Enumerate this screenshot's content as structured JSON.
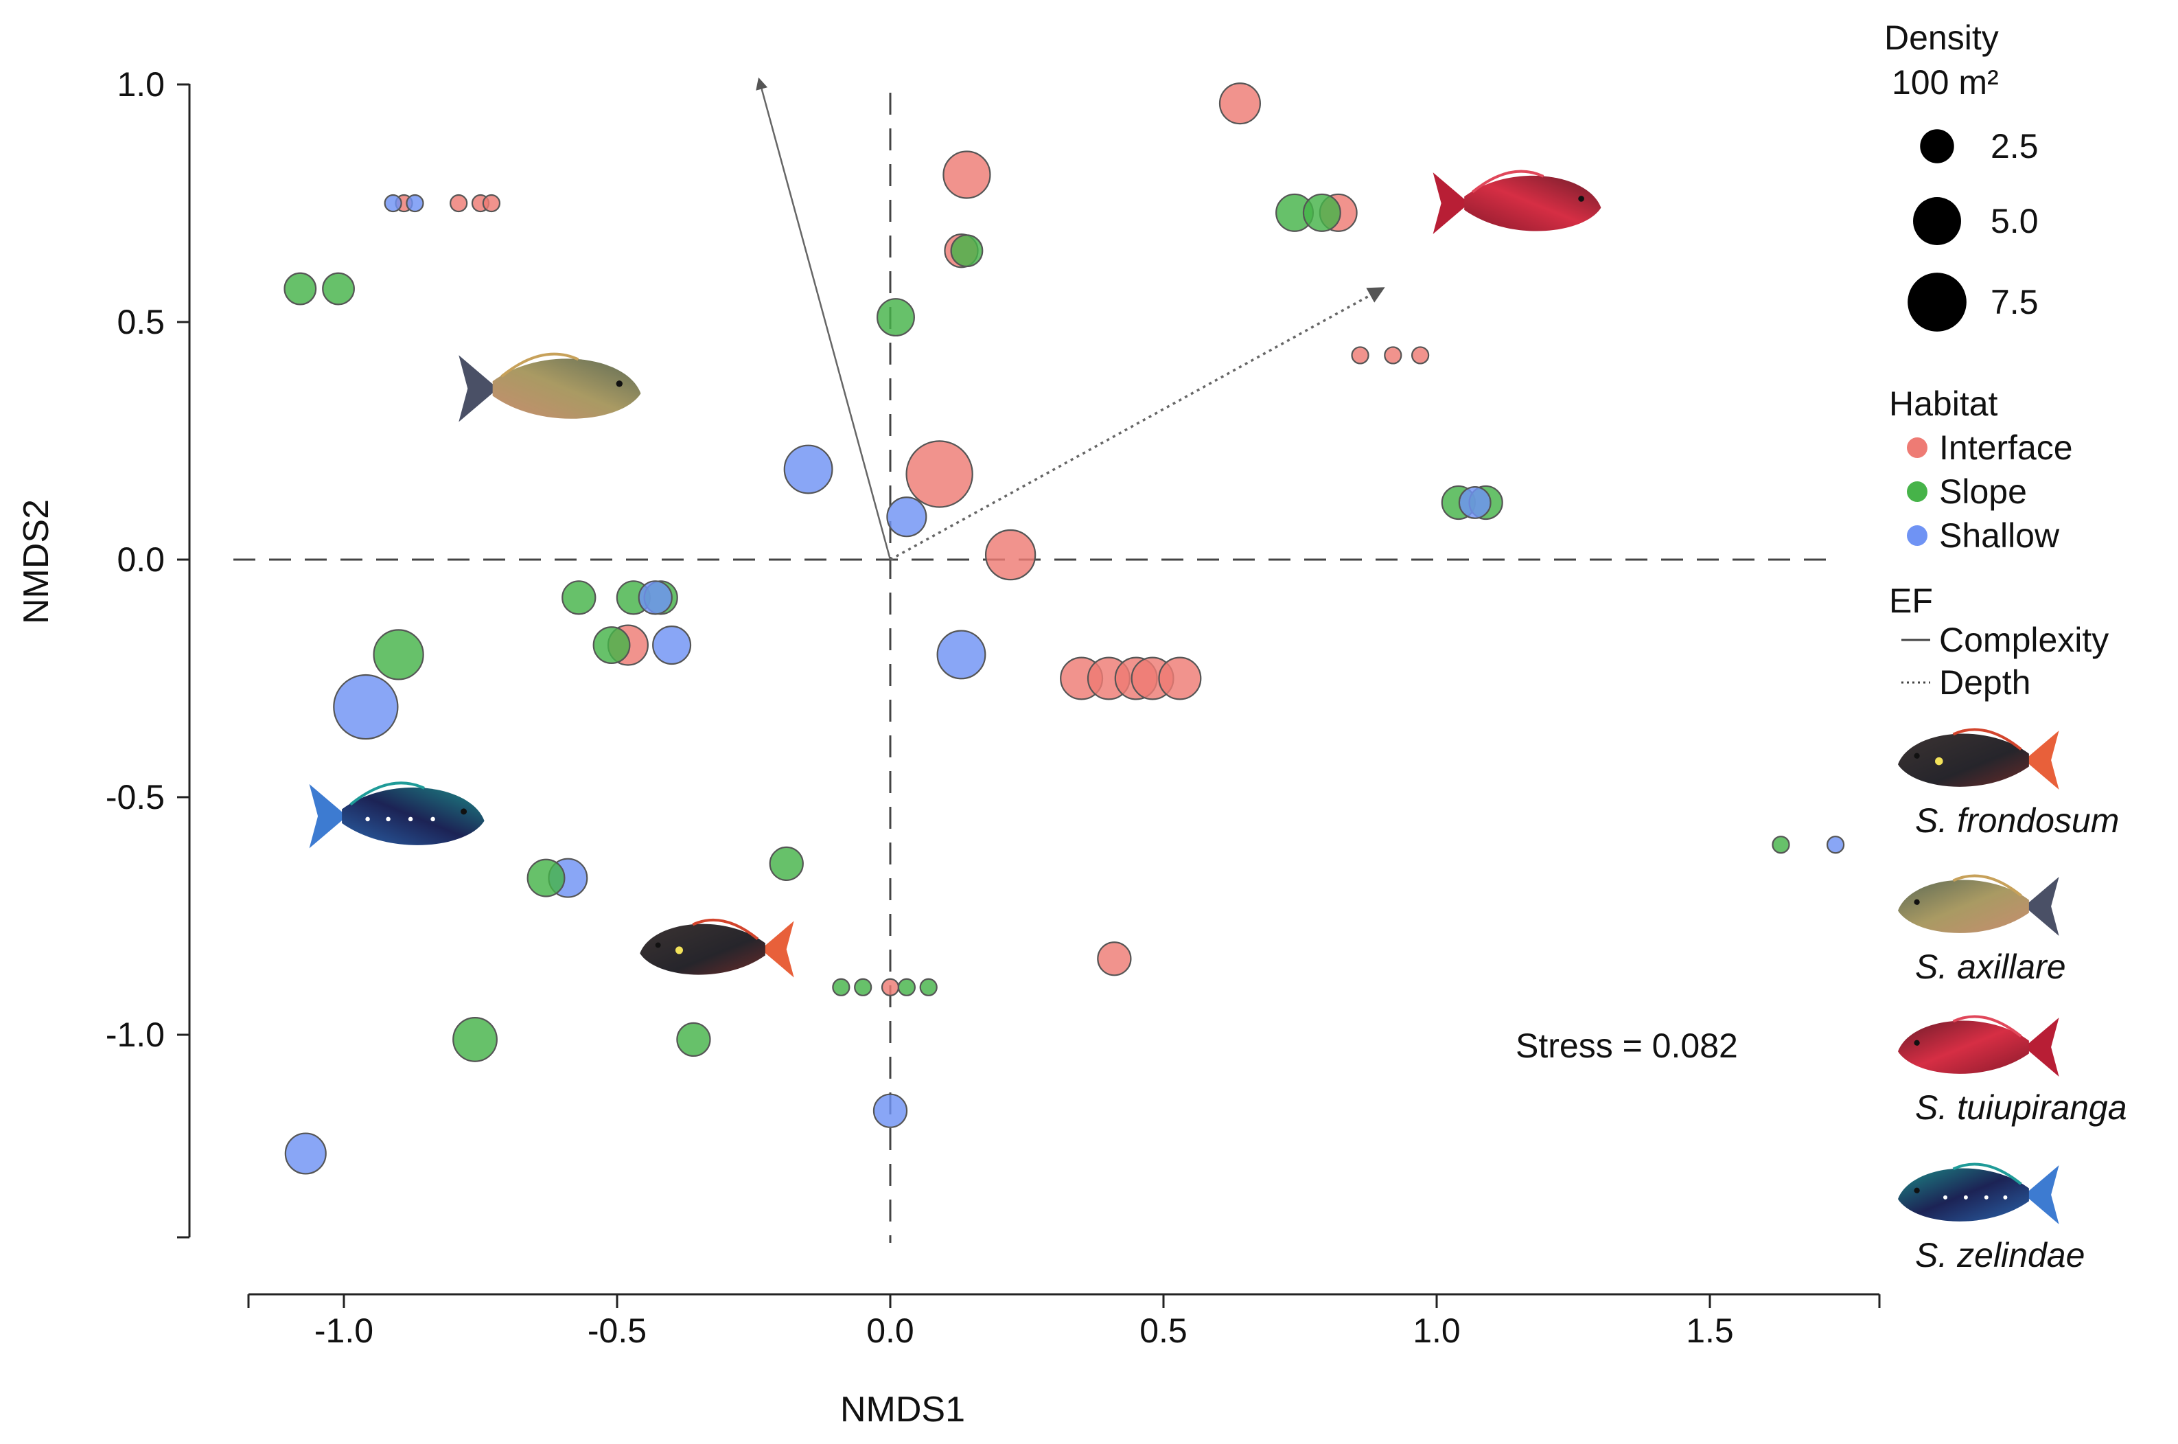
{
  "chart_data": {
    "type": "scatter",
    "title": "",
    "xlabel": "NMDS1",
    "ylabel": "NMDS2",
    "xlim": [
      -1.18,
      1.8
    ],
    "ylim": [
      -1.42,
      1.06
    ],
    "x_ticks": [
      -1.0,
      -0.5,
      0.0,
      0.5,
      1.0,
      1.5
    ],
    "x_tick_labels": [
      "-1.0",
      "-0.5",
      "0.0",
      "0.5",
      "1.0",
      "1.5"
    ],
    "y_ticks": [
      1.0,
      0.5,
      0.0,
      -0.5,
      -1.0
    ],
    "y_tick_labels": [
      "1.0",
      "0.5",
      "0.0",
      "-0.5",
      "-1.0"
    ],
    "reference_lines": {
      "x": 0,
      "y": 0,
      "style": "dashed"
    },
    "stress_label": "Stress = 0.082",
    "colors": {
      "Interface": "#ee7b74",
      "Slope": "#46b349",
      "Shallow": "#6f93f4"
    },
    "series": [
      {
        "name": "Interface",
        "points": [
          {
            "x": 0.64,
            "y": 0.96,
            "density": 3.0
          },
          {
            "x": 0.14,
            "y": 0.81,
            "density": 4.0
          },
          {
            "x": 0.13,
            "y": 0.65,
            "density": 2.0
          },
          {
            "x": 0.82,
            "y": 0.73,
            "density": 2.5
          },
          {
            "x": 0.09,
            "y": 0.18,
            "density": 8.0
          },
          {
            "x": 0.22,
            "y": 0.01,
            "density": 4.5
          },
          {
            "x": 0.35,
            "y": -0.25,
            "density": 3.2
          },
          {
            "x": 0.4,
            "y": -0.25,
            "density": 3.2
          },
          {
            "x": 0.45,
            "y": -0.25,
            "density": 3.2
          },
          {
            "x": 0.48,
            "y": -0.25,
            "density": 3.2
          },
          {
            "x": 0.53,
            "y": -0.25,
            "density": 3.2
          },
          {
            "x": -0.48,
            "y": -0.18,
            "density": 2.9
          },
          {
            "x": 0.41,
            "y": -0.84,
            "density": 2.0
          },
          {
            "x": 0.86,
            "y": 0.43,
            "density": 0.5
          },
          {
            "x": 0.92,
            "y": 0.43,
            "density": 0.5
          },
          {
            "x": 0.97,
            "y": 0.43,
            "density": 0.5
          },
          {
            "x": -0.79,
            "y": 0.75,
            "density": 0.5
          },
          {
            "x": -0.75,
            "y": 0.75,
            "density": 0.5
          },
          {
            "x": -0.73,
            "y": 0.75,
            "density": 0.5
          },
          {
            "x": 0.0,
            "y": -0.9,
            "density": 0.5
          },
          {
            "x": -0.89,
            "y": 0.75,
            "density": 0.5
          }
        ]
      },
      {
        "name": "Slope",
        "points": [
          {
            "x": -1.08,
            "y": 0.57,
            "density": 1.8
          },
          {
            "x": -1.01,
            "y": 0.57,
            "density": 1.8
          },
          {
            "x": 0.01,
            "y": 0.51,
            "density": 2.5
          },
          {
            "x": 0.74,
            "y": 0.73,
            "density": 2.5
          },
          {
            "x": 0.79,
            "y": 0.73,
            "density": 2.5
          },
          {
            "x": 1.04,
            "y": 0.12,
            "density": 2.0
          },
          {
            "x": 1.09,
            "y": 0.12,
            "density": 2.0
          },
          {
            "x": -0.9,
            "y": -0.2,
            "density": 4.5
          },
          {
            "x": -0.57,
            "y": -0.08,
            "density": 2.0
          },
          {
            "x": -0.47,
            "y": -0.08,
            "density": 2.0
          },
          {
            "x": -0.42,
            "y": -0.08,
            "density": 2.0
          },
          {
            "x": -0.51,
            "y": -0.18,
            "density": 2.4
          },
          {
            "x": -0.63,
            "y": -0.67,
            "density": 2.5
          },
          {
            "x": -0.19,
            "y": -0.64,
            "density": 2.0
          },
          {
            "x": -0.76,
            "y": -1.01,
            "density": 3.5
          },
          {
            "x": -0.36,
            "y": -1.01,
            "density": 2.0
          },
          {
            "x": -0.09,
            "y": -0.9,
            "density": 0.5
          },
          {
            "x": -0.05,
            "y": -0.9,
            "density": 0.5
          },
          {
            "x": 0.03,
            "y": -0.9,
            "density": 0.5
          },
          {
            "x": 0.07,
            "y": -0.9,
            "density": 0.5
          },
          {
            "x": 1.63,
            "y": -0.6,
            "density": 0.5
          },
          {
            "x": 0.14,
            "y": 0.65,
            "density": 1.8
          }
        ]
      },
      {
        "name": "Shallow",
        "points": [
          {
            "x": -0.15,
            "y": 0.19,
            "density": 4.2
          },
          {
            "x": 0.03,
            "y": 0.09,
            "density": 2.8
          },
          {
            "x": 0.13,
            "y": -0.2,
            "density": 4.2
          },
          {
            "x": -0.43,
            "y": -0.08,
            "density": 2.0
          },
          {
            "x": -0.4,
            "y": -0.18,
            "density": 2.6
          },
          {
            "x": -0.96,
            "y": -0.31,
            "density": 7.5
          },
          {
            "x": -0.59,
            "y": -0.67,
            "density": 2.7
          },
          {
            "x": 0.0,
            "y": -1.16,
            "density": 2.0
          },
          {
            "x": -1.07,
            "y": -1.25,
            "density": 3.0
          },
          {
            "x": 1.07,
            "y": 0.12,
            "density": 1.8
          },
          {
            "x": -0.91,
            "y": 0.75,
            "density": 0.5
          },
          {
            "x": -0.87,
            "y": 0.75,
            "density": 0.5
          },
          {
            "x": 1.73,
            "y": -0.6,
            "density": 0.5
          }
        ]
      }
    ],
    "vectors": [
      {
        "name": "Complexity",
        "style": "solid",
        "x": -0.24,
        "y": 1.01
      },
      {
        "name": "Depth",
        "style": "dotted",
        "x": 0.9,
        "y": 0.57
      }
    ],
    "species_images": [
      {
        "species": "S. axillare",
        "x": -0.62,
        "y": 0.36
      },
      {
        "species": "S. tuiupiranga",
        "x": 1.15,
        "y": 0.75
      },
      {
        "species": "S. zelindae",
        "x": -0.9,
        "y": -0.54
      },
      {
        "species": "S. frondosum",
        "x": -0.32,
        "y": -0.82
      }
    ]
  },
  "legend": {
    "density": {
      "title_line1": "Density",
      "title_line2": "100 m²",
      "items": [
        {
          "label": "2.5",
          "value": 2.5
        },
        {
          "label": "5.0",
          "value": 5.0
        },
        {
          "label": "7.5",
          "value": 7.5
        }
      ]
    },
    "habitat": {
      "title": "Habitat",
      "items": [
        {
          "label": "Interface",
          "key": "Interface"
        },
        {
          "label": "Slope",
          "key": "Slope"
        },
        {
          "label": "Shallow",
          "key": "Shallow"
        }
      ]
    },
    "ef": {
      "title": "EF",
      "items": [
        {
          "label": "Complexity",
          "style": "solid"
        },
        {
          "label": "Depth",
          "style": "dotted"
        }
      ]
    },
    "species": [
      {
        "label": "S. frondosum"
      },
      {
        "label": "S. axillare"
      },
      {
        "label": "S. tuiupiranga"
      },
      {
        "label": "S. zelindae"
      }
    ]
  }
}
